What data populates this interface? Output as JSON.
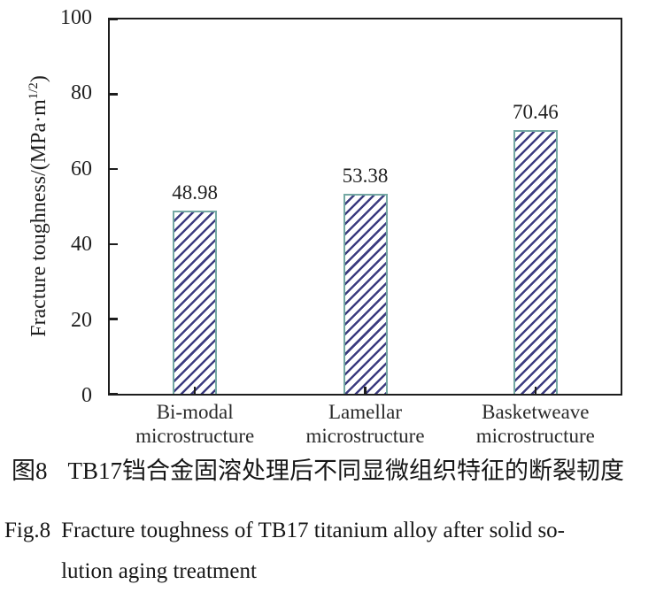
{
  "chart_data": {
    "type": "bar",
    "title": "",
    "xlabel": "",
    "ylabel_text": "Fracture toughness/(MPa·m^(1/2))",
    "ylabel": {
      "main": "Fracture toughness/(MPa·m",
      "sup": "1/2",
      "close": ")"
    },
    "categories": [
      "Bi-modal microstructure",
      "Lamellar microstructure",
      "Basketweave microstructure"
    ],
    "category_lines": [
      [
        "Bi-modal",
        "microstructure"
      ],
      [
        "Lamellar",
        "microstructure"
      ],
      [
        "Basketweave",
        "microstructure"
      ]
    ],
    "values": [
      48.98,
      53.38,
      70.46
    ],
    "value_labels": [
      "48.98",
      "53.38",
      "70.46"
    ],
    "ylim": [
      0,
      100
    ],
    "yticks": [
      0,
      20,
      40,
      60,
      80,
      100
    ],
    "grid": false,
    "legend_position": "none",
    "bar_style": {
      "fill": "#ffffff",
      "hatch": "forward-diagonal",
      "hatch_color": "#3c3c80",
      "border_color": "#74a8a3"
    },
    "axis_color": "#1d1d1d"
  },
  "figure": {
    "caption_cn": {
      "label": "图8",
      "text": "TB17铛合金固溶处理后不同显微组织特征的断裂韧度"
    },
    "caption_en": {
      "label": "Fig.8",
      "lines": [
        "Fracture toughness of TB17 titanium alloy after solid so-",
        "lution aging treatment"
      ]
    }
  }
}
